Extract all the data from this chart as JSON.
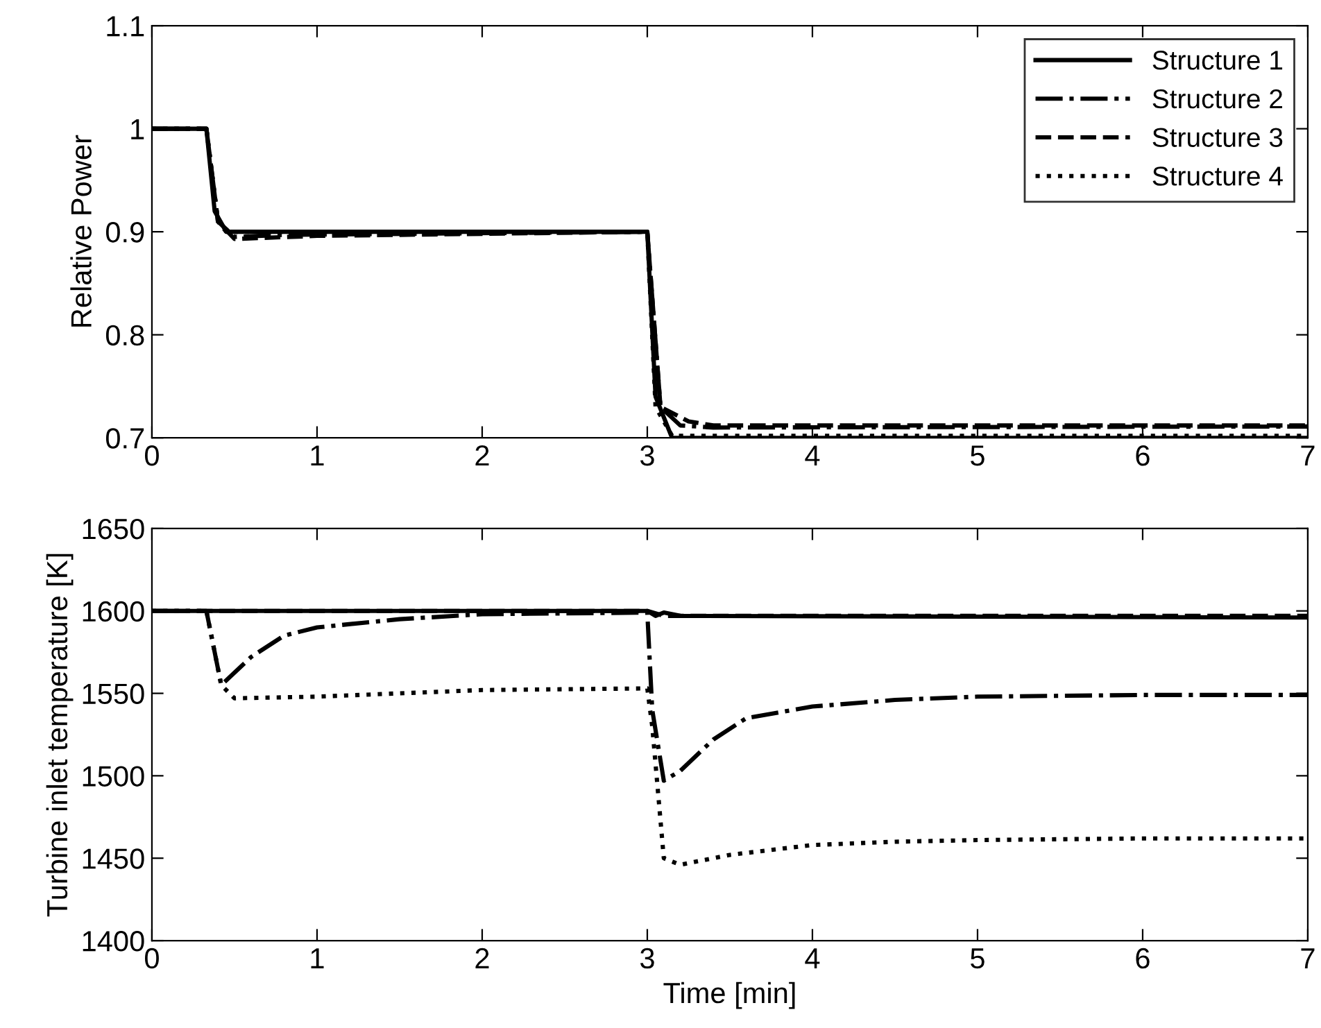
{
  "chart_data": [
    {
      "type": "line",
      "ylabel": "Relative Power",
      "xlim": [
        0,
        7
      ],
      "xticks": [
        0,
        1,
        2,
        3,
        4,
        5,
        6,
        7
      ],
      "ylim": [
        0.7,
        1.1
      ],
      "yticks": [
        0.7,
        0.8,
        0.9,
        1,
        1.1
      ],
      "legend": "top right",
      "series": [
        {
          "name": "Structure 1",
          "color": "#000000",
          "line_style": "solid",
          "x": [
            0,
            0.33,
            0.38,
            0.45,
            3.0,
            3.05,
            3.15,
            7
          ],
          "values": [
            1,
            1,
            0.92,
            0.9,
            0.9,
            0.74,
            0.7,
            0.7
          ]
        },
        {
          "name": "Structure 2",
          "color": "#000000",
          "line_style": "dashdot",
          "x": [
            0,
            0.33,
            0.4,
            0.5,
            0.8,
            3.0,
            3.08,
            3.2,
            3.4,
            7
          ],
          "values": [
            1,
            1,
            0.91,
            0.895,
            0.897,
            0.9,
            0.73,
            0.712,
            0.71,
            0.711
          ]
        },
        {
          "name": "Structure 3",
          "color": "#000000",
          "line_style": "dashed",
          "x": [
            0,
            0.33,
            0.4,
            0.5,
            1,
            3.0,
            3.08,
            3.25,
            3.4,
            7
          ],
          "values": [
            1,
            1,
            0.91,
            0.893,
            0.896,
            0.9,
            0.73,
            0.716,
            0.712,
            0.712
          ]
        },
        {
          "name": "Structure 4",
          "color": "#000000",
          "line_style": "dotted",
          "x": [
            0,
            0.33,
            0.4,
            0.45,
            3.0,
            3.05,
            3.15,
            7
          ],
          "values": [
            1,
            1,
            0.91,
            0.9,
            0.9,
            0.73,
            0.702,
            0.702
          ]
        }
      ]
    },
    {
      "type": "line",
      "xlabel": "Time [min]",
      "ylabel": "Turbine inlet temperature [K]",
      "xlim": [
        0,
        7
      ],
      "xticks": [
        0,
        1,
        2,
        3,
        4,
        5,
        6,
        7
      ],
      "ylim": [
        1400,
        1650
      ],
      "yticks": [
        1400,
        1450,
        1500,
        1550,
        1600,
        1650
      ],
      "series": [
        {
          "color": "#000000",
          "line_style": "solid",
          "x": [
            0,
            3.0,
            3.05,
            3.1,
            3.2,
            7
          ],
          "values": [
            1600,
            1600,
            1597,
            1599,
            1597,
            1596
          ]
        },
        {
          "color": "#000000",
          "line_style": "dashdot",
          "x": [
            0,
            0.33,
            0.42,
            0.6,
            0.8,
            1.0,
            1.5,
            2.0,
            3.0,
            3.03,
            3.1,
            3.2,
            3.4,
            3.6,
            4.0,
            4.5,
            5,
            6,
            7
          ],
          "values": [
            1600,
            1600,
            1555,
            1572,
            1585,
            1590,
            1595,
            1598,
            1599,
            1540,
            1497,
            1503,
            1522,
            1535,
            1542,
            1546,
            1548,
            1549,
            1549
          ]
        },
        {
          "color": "#000000",
          "line_style": "dashed",
          "x": [
            0,
            3.0,
            3.1,
            7
          ],
          "values": [
            1600,
            1600,
            1597,
            1597
          ]
        },
        {
          "color": "#000000",
          "line_style": "dotted",
          "x": [
            0,
            0.33,
            0.42,
            0.5,
            1,
            2,
            3.0,
            3.03,
            3.1,
            3.2,
            3.5,
            4,
            4.5,
            5,
            6,
            7
          ],
          "values": [
            1600,
            1600,
            1555,
            1547,
            1548,
            1552,
            1553,
            1530,
            1450,
            1446,
            1452,
            1458,
            1460,
            1461,
            1462,
            1462
          ]
        }
      ]
    }
  ]
}
